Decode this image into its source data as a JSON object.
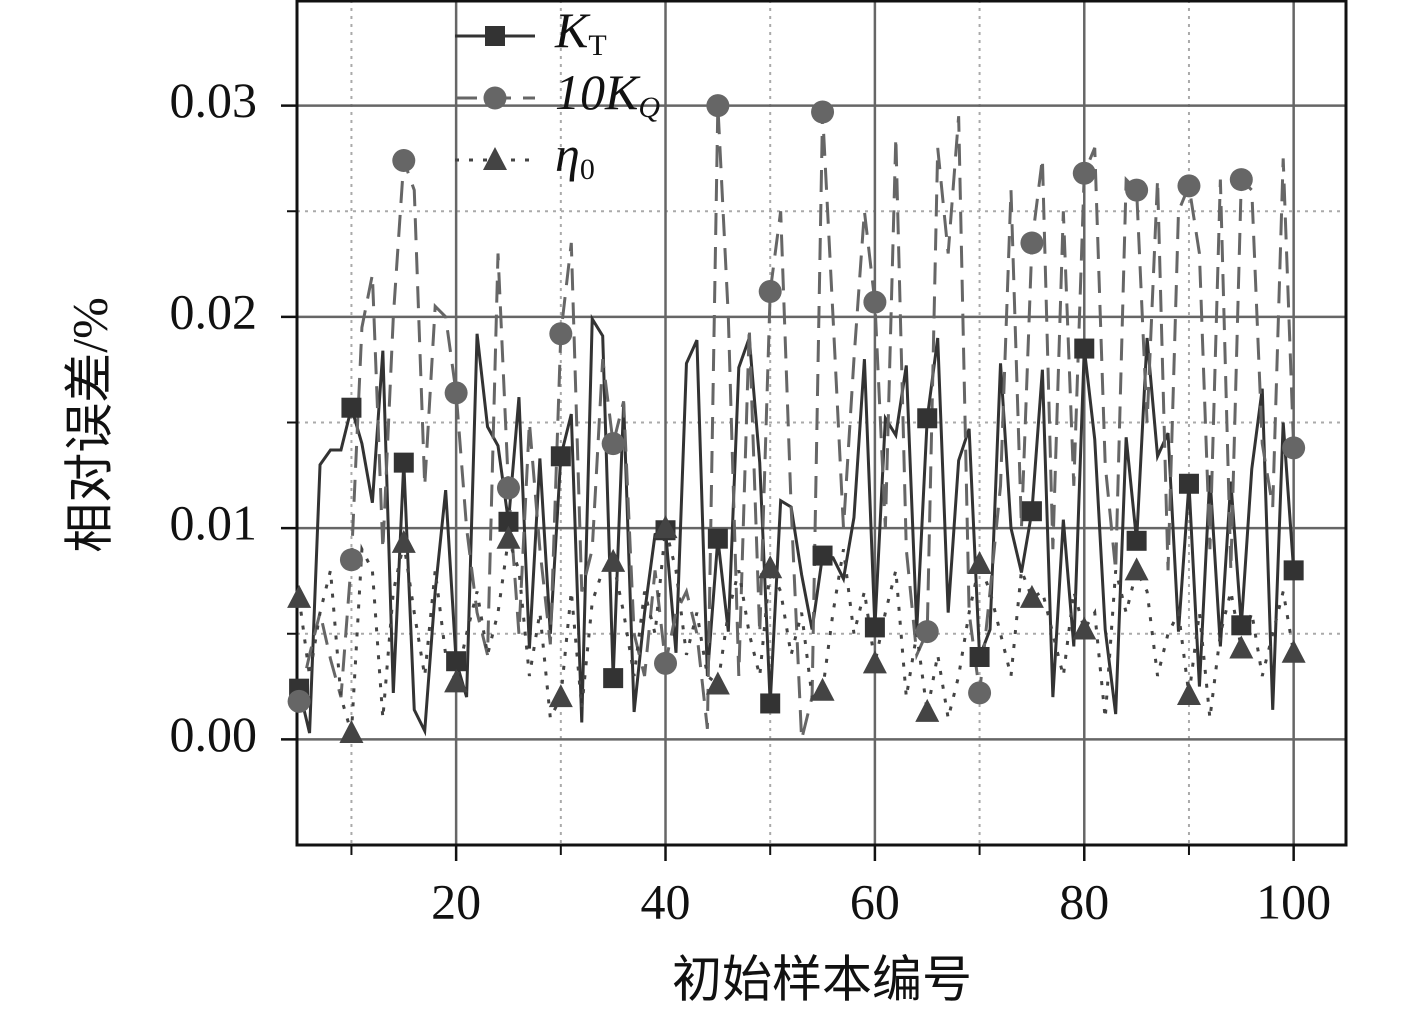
{
  "chart_data": {
    "type": "line",
    "xlabel": "初始样本编号",
    "ylabel": "相对误差/%",
    "xlim": [
      4.8,
      105
    ],
    "ylim": [
      -0.005,
      0.035
    ],
    "xticks": [
      20,
      40,
      60,
      80,
      100
    ],
    "yticks": [
      {
        "value": 0,
        "label": "0.00"
      },
      0.01,
      0.02,
      0.03
    ],
    "minor_xticks": [
      10,
      30,
      50,
      70,
      90
    ],
    "minor_yticks": [
      0.005,
      0.015,
      0.025
    ],
    "grid": true,
    "legend": "upper left",
    "markevery": 5,
    "x": [
      5,
      6,
      7,
      8,
      9,
      10,
      11,
      12,
      13,
      14,
      15,
      16,
      17,
      18,
      19,
      20,
      21,
      22,
      23,
      24,
      25,
      26,
      27,
      28,
      29,
      30,
      31,
      32,
      33,
      34,
      35,
      36,
      37,
      38,
      39,
      40,
      41,
      42,
      43,
      44,
      45,
      46,
      47,
      48,
      49,
      50,
      51,
      52,
      53,
      54,
      55,
      56,
      57,
      58,
      59,
      60,
      61,
      62,
      63,
      64,
      65,
      66,
      67,
      68,
      69,
      70,
      71,
      72,
      73,
      74,
      75,
      76,
      77,
      78,
      79,
      80,
      81,
      82,
      83,
      84,
      85,
      86,
      87,
      88,
      89,
      90,
      91,
      92,
      93,
      94,
      95,
      96,
      97,
      98,
      99,
      100
    ],
    "series": [
      {
        "name": "K",
        "name_sub": "T",
        "color": "#333333",
        "marker": "square",
        "dash": "solid",
        "values": [
          0.0024,
          0.0003,
          0.013,
          0.0137,
          0.0137,
          0.0157,
          0.014,
          0.0112,
          0.0184,
          0.0022,
          0.0131,
          0.0014,
          0.0004,
          0.007,
          0.0118,
          0.0037,
          0.002,
          0.0192,
          0.0148,
          0.0139,
          0.0103,
          0.0162,
          0.0043,
          0.0133,
          0.005,
          0.0134,
          0.0154,
          0.0008,
          0.0199,
          0.0191,
          0.0029,
          0.0159,
          0.0013,
          0.006,
          0.0097,
          0.0099,
          0.0041,
          0.0178,
          0.0189,
          0.003,
          0.0095,
          0.0051,
          0.0176,
          0.019,
          0.0131,
          0.0017,
          0.0113,
          0.011,
          0.0078,
          0.0052,
          0.0087,
          0.0086,
          0.0076,
          0.0105,
          0.018,
          0.0053,
          0.0152,
          0.0144,
          0.0177,
          0.0052,
          0.0152,
          0.019,
          0.006,
          0.0132,
          0.0147,
          0.0039,
          0.0052,
          0.0178,
          0.01,
          0.0079,
          0.0108,
          0.0175,
          0.002,
          0.0104,
          0.0044,
          0.0185,
          0.0142,
          0.0052,
          0.0012,
          0.0143,
          0.0094,
          0.019,
          0.0134,
          0.0145,
          0.0051,
          0.0121,
          0.0025,
          0.0125,
          0.0044,
          0.0122,
          0.0054,
          0.0128,
          0.0166,
          0.0014,
          0.015,
          0.008
        ]
      },
      {
        "name": "10K",
        "name_sub": "Q",
        "color": "#666666",
        "marker": "circle",
        "dash": "dashed",
        "values": [
          0.0018,
          0.004,
          0.006,
          0.0038,
          0.002,
          0.0085,
          0.0195,
          0.022,
          0.009,
          0.02,
          0.0274,
          0.026,
          0.012,
          0.0205,
          0.02,
          0.0164,
          0.01,
          0.006,
          0.004,
          0.023,
          0.0119,
          0.005,
          0.015,
          0.009,
          0.0045,
          0.0192,
          0.0235,
          0.007,
          0.009,
          0.018,
          0.014,
          0.016,
          0.005,
          0.003,
          0.008,
          0.0036,
          0.006,
          0.007,
          0.005,
          0.0005,
          0.03,
          0.02,
          0.003,
          0.0195,
          0.005,
          0.0212,
          0.025,
          0.011,
          0.0,
          0.002,
          0.0297,
          0.02,
          0.01,
          0.018,
          0.025,
          0.0207,
          0.01,
          0.0285,
          0.009,
          0.004,
          0.0051,
          0.028,
          0.023,
          0.0295,
          0.006,
          0.0022,
          0.007,
          0.012,
          0.026,
          0.01,
          0.0235,
          0.0275,
          0.009,
          0.025,
          0.012,
          0.0268,
          0.028,
          0.013,
          0.008,
          0.0265,
          0.026,
          0.015,
          0.0265,
          0.008,
          0.025,
          0.0262,
          0.023,
          0.009,
          0.0265,
          0.008,
          0.0265,
          0.026,
          0.014,
          0.011,
          0.0275,
          0.0138
        ]
      },
      {
        "name": "η",
        "name_sub": "0",
        "color": "#444444",
        "marker": "triangle",
        "dash": "dotted",
        "values": [
          0.0067,
          0.003,
          0.006,
          0.008,
          0.002,
          0.0003,
          0.009,
          0.008,
          0.001,
          0.007,
          0.0093,
          0.006,
          0.003,
          0.008,
          0.004,
          0.0027,
          0.005,
          0.007,
          0.004,
          0.006,
          0.0095,
          0.008,
          0.003,
          0.006,
          0.001,
          0.002,
          0.007,
          0.0015,
          0.0065,
          0.008,
          0.0084,
          0.006,
          0.003,
          0.007,
          0.005,
          0.01,
          0.008,
          0.004,
          0.006,
          0.003,
          0.0026,
          0.006,
          0.008,
          0.005,
          0.003,
          0.0081,
          0.007,
          0.004,
          0.006,
          0.002,
          0.0023,
          0.006,
          0.009,
          0.005,
          0.007,
          0.0036,
          0.006,
          0.008,
          0.002,
          0.005,
          0.0013,
          0.004,
          0.001,
          0.003,
          0.006,
          0.0083,
          0.007,
          0.005,
          0.003,
          0.008,
          0.0067,
          0.007,
          0.005,
          0.003,
          0.007,
          0.0052,
          0.006,
          0.001,
          0.008,
          0.006,
          0.008,
          0.007,
          0.003,
          0.005,
          0.006,
          0.0021,
          0.006,
          0.001,
          0.005,
          0.007,
          0.0043,
          0.006,
          0.003,
          0.005,
          0.007,
          0.0041
        ]
      }
    ]
  }
}
